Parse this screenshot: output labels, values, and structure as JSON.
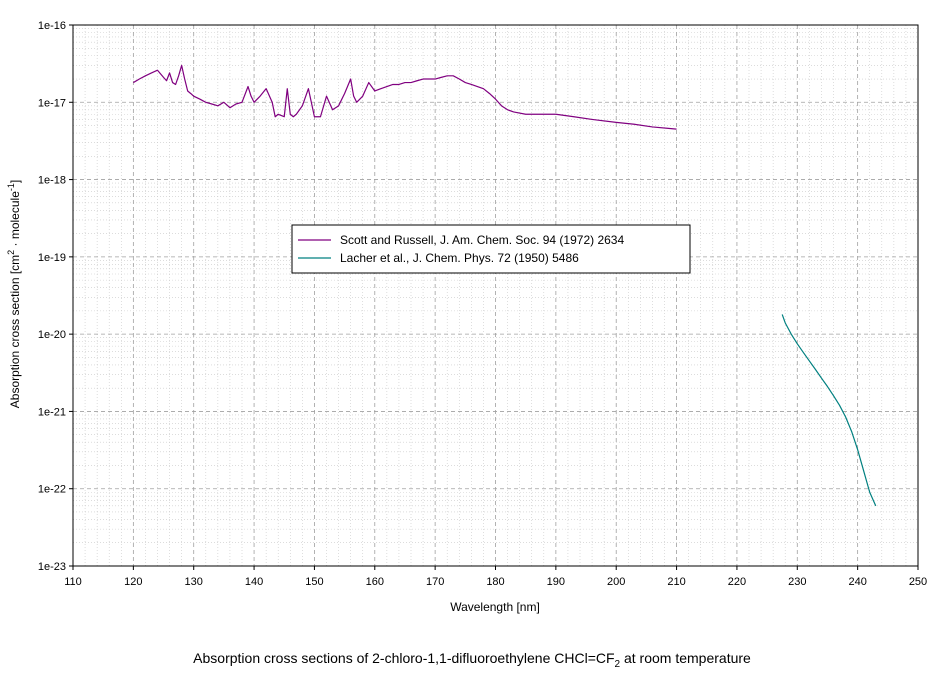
{
  "caption": {
    "prefix": "Absorption cross sections of 2-chloro-1,1-difluoroethylene CHCl=CF",
    "sub": "2",
    "suffix": " at room temperature"
  },
  "chart_data": {
    "type": "line",
    "xlabel": "Wavelength [nm]",
    "ylabel": {
      "t1": "Absorption cross section [cm",
      "sup1": "2",
      "t2": " · molecule",
      "sup2": "-1",
      "t3": "]"
    },
    "xlim": [
      110,
      250
    ],
    "x_ticks": [
      110,
      120,
      130,
      140,
      150,
      160,
      170,
      180,
      190,
      200,
      210,
      220,
      230,
      240,
      250
    ],
    "ylim": [
      1e-23,
      1e-16
    ],
    "y_scale": "log",
    "y_ticks": [
      "1e-23",
      "1e-22",
      "1e-21",
      "1e-20",
      "1e-19",
      "1e-18",
      "1e-17",
      "1e-16"
    ],
    "grid": true,
    "legend_position": "center-left",
    "series": [
      {
        "name": "Scott and Russell, J. Am. Chem. Soc. 94 (1972) 2634",
        "color": "#800080",
        "x": [
          120,
          121,
          122,
          123,
          124,
          125,
          125.5,
          126,
          126.5,
          127,
          127.5,
          128,
          128.5,
          129,
          129.5,
          130,
          131,
          132,
          133,
          134,
          135,
          136,
          137,
          138,
          139,
          139.5,
          140,
          141,
          142,
          143,
          143.5,
          144,
          145,
          145.5,
          146,
          146.5,
          147,
          148,
          149,
          150,
          151,
          152,
          153,
          154,
          155,
          156,
          156.5,
          157,
          158,
          159,
          160,
          161,
          162,
          163,
          164,
          165,
          166,
          167,
          168,
          169,
          170,
          171,
          172,
          173,
          174,
          175,
          176,
          177,
          178,
          179,
          180,
          181,
          182,
          183,
          185,
          187,
          190,
          193,
          196,
          200,
          203,
          206,
          210
        ],
        "y": [
          1.8e-17,
          2e-17,
          2.2e-17,
          2.4e-17,
          2.6e-17,
          2.1e-17,
          1.9e-17,
          2.4e-17,
          1.8e-17,
          1.7e-17,
          2.2e-17,
          3e-17,
          2e-17,
          1.4e-17,
          1.3e-17,
          1.2e-17,
          1.1e-17,
          1e-17,
          9.5e-18,
          9e-18,
          1e-17,
          8.5e-18,
          9.5e-18,
          1e-17,
          1.6e-17,
          1.2e-17,
          1e-17,
          1.2e-17,
          1.5e-17,
          1e-17,
          6.5e-18,
          7e-18,
          6.5e-18,
          1.5e-17,
          7e-18,
          6.5e-18,
          7e-18,
          9e-18,
          1.5e-17,
          6.5e-18,
          6.5e-18,
          1.2e-17,
          8e-18,
          9e-18,
          1.3e-17,
          2e-17,
          1.2e-17,
          1e-17,
          1.2e-17,
          1.8e-17,
          1.4e-17,
          1.5e-17,
          1.6e-17,
          1.7e-17,
          1.7e-17,
          1.8e-17,
          1.8e-17,
          1.9e-17,
          2e-17,
          2e-17,
          2e-17,
          2.1e-17,
          2.2e-17,
          2.2e-17,
          2e-17,
          1.8e-17,
          1.7e-17,
          1.6e-17,
          1.5e-17,
          1.3e-17,
          1.1e-17,
          9e-18,
          8e-18,
          7.5e-18,
          7e-18,
          7e-18,
          7e-18,
          6.5e-18,
          6e-18,
          5.5e-18,
          5.2e-18,
          4.8e-18,
          4.5e-18
        ]
      },
      {
        "name": "Lacher et al., J. Chem. Phys. 72 (1950) 5486",
        "color": "#008080",
        "x": [
          227.5,
          228,
          229,
          230,
          231,
          232,
          233,
          234,
          235,
          236,
          237,
          238,
          239,
          240,
          241,
          242,
          243
        ],
        "y": [
          1.8e-20,
          1.4e-20,
          1e-20,
          7.5e-21,
          5.8e-21,
          4.5e-21,
          3.5e-21,
          2.7e-21,
          2.1e-21,
          1.6e-21,
          1.2e-21,
          8.5e-22,
          5.5e-22,
          3.2e-22,
          1.7e-22,
          9e-23,
          6e-23
        ]
      }
    ]
  }
}
